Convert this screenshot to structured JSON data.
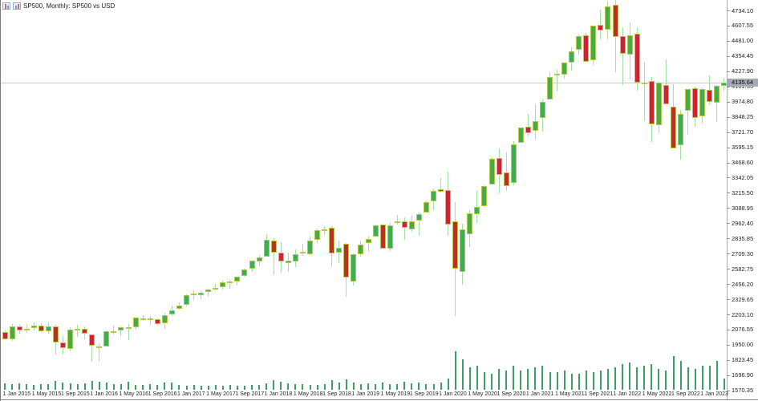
{
  "window": {
    "title": "SP500, Monthly: SP500 vs USD"
  },
  "icons": [
    {
      "name": "candlestick-chart-icon"
    },
    {
      "name": "bar-chart-icon"
    }
  ],
  "colors": {
    "background": "#ffffff",
    "bull_body": "#41ad4c",
    "bear_body": "#c9272f",
    "candle_outline": "#b4c84b",
    "wick": "#a5e0a5",
    "volume_bar": "#3b9f66",
    "current_price_line": "#c9c9c9",
    "price_tag_bg": "#a2a9b2",
    "axis_text": "#1f1f1f"
  },
  "y_axis": {
    "current_price": "4135.64",
    "label_under_tag": "4101.35",
    "top_label_value": 4734.1,
    "label_step": 126.55,
    "labels": [
      "4734.10",
      "4607.55",
      "4481.00",
      "4354.45",
      "4227.90",
      "4101.35",
      "3974.80",
      "3848.25",
      "3721.70",
      "3595.15",
      "3468.60",
      "3342.05",
      "3215.50",
      "3088.95",
      "2962.40",
      "2835.85",
      "2709.30",
      "2582.75",
      "2456.20",
      "2329.65",
      "2203.10",
      "2076.55",
      "1950.00",
      "1823.45",
      "1696.90",
      "1570.35"
    ]
  },
  "x_axis": {
    "labels": [
      "1 Jan 2015",
      "1 May 2015",
      "1 Sep 2015",
      "1 Jan 2016",
      "1 May 2016",
      "1 Sep 2016",
      "1 Jan 2017",
      "1 May 2017",
      "1 Sep 2017",
      "1 Jan 2018",
      "1 May 2018",
      "1 Sep 2018",
      "1 Jan 2019",
      "1 May 2019",
      "1 Sep 2019",
      "1 Jan 2020",
      "1 May 2020",
      "1 Sep 2020",
      "1 Jan 2021",
      "1 May 2021",
      "1 Sep 2021",
      "1 Jan 2022",
      "1 May 2022",
      "1 Sep 2022",
      "1 Jan 2023"
    ]
  },
  "chart_data": {
    "type": "candlestick",
    "title": "SP500, Monthly: SP500 vs USD",
    "symbol": "SP500",
    "timeframe": "Monthly",
    "quote_currency": "USD",
    "current_price": 4135.64,
    "ylim": [
      1570.35,
      4734.1
    ],
    "grid": false,
    "legend_position": "top-left",
    "columns": [
      "month",
      "open",
      "high",
      "low",
      "close",
      "volume_relative"
    ],
    "candles": [
      [
        "2014-12",
        2072,
        2094,
        1972,
        2059,
        7
      ],
      [
        "2015-01",
        2058,
        2072,
        1988,
        1995,
        8
      ],
      [
        "2015-02",
        1996,
        2120,
        1980,
        2105,
        7
      ],
      [
        "2015-03",
        2105,
        2117,
        2040,
        2068,
        8
      ],
      [
        "2015-04",
        2068,
        2126,
        2048,
        2086,
        7
      ],
      [
        "2015-05",
        2087,
        2135,
        2067,
        2107,
        6
      ],
      [
        "2015-06",
        2108,
        2130,
        2056,
        2063,
        7
      ],
      [
        "2015-07",
        2063,
        2133,
        2044,
        2104,
        7
      ],
      [
        "2015-08",
        2104,
        2113,
        1867,
        1972,
        11
      ],
      [
        "2015-09",
        1971,
        2021,
        1872,
        1920,
        9
      ],
      [
        "2015-10",
        1919,
        2095,
        1894,
        2079,
        8
      ],
      [
        "2015-11",
        2080,
        2116,
        2019,
        2086,
        7
      ],
      [
        "2015-12",
        2082,
        2104,
        1993,
        2044,
        8
      ],
      [
        "2016-01",
        2038,
        2038,
        1812,
        1940,
        11
      ],
      [
        "2016-02",
        1937,
        1963,
        1810,
        1932,
        10
      ],
      [
        "2016-03",
        1937,
        2072,
        1937,
        2060,
        9
      ],
      [
        "2016-04",
        2056,
        2111,
        2033,
        2065,
        7
      ],
      [
        "2016-05",
        2067,
        2103,
        2025,
        2097,
        7
      ],
      [
        "2016-06",
        2093,
        2120,
        1991,
        2099,
        10
      ],
      [
        "2016-07",
        2099,
        2177,
        2074,
        2174,
        6
      ],
      [
        "2016-08",
        2173,
        2194,
        2147,
        2171,
        6
      ],
      [
        "2016-09",
        2171,
        2187,
        2119,
        2168,
        7
      ],
      [
        "2016-10",
        2164,
        2169,
        2114,
        2126,
        6
      ],
      [
        "2016-11",
        2128,
        2214,
        2083,
        2199,
        9
      ],
      [
        "2016-12",
        2200,
        2278,
        2187,
        2239,
        9
      ],
      [
        "2017-01",
        2251,
        2301,
        2245,
        2279,
        6
      ],
      [
        "2017-02",
        2285,
        2371,
        2271,
        2364,
        5
      ],
      [
        "2017-03",
        2380,
        2401,
        2322,
        2363,
        6
      ],
      [
        "2017-04",
        2362,
        2398,
        2329,
        2384,
        5
      ],
      [
        "2017-05",
        2388,
        2418,
        2352,
        2412,
        5
      ],
      [
        "2017-06",
        2415,
        2454,
        2405,
        2423,
        6
      ],
      [
        "2017-07",
        2431,
        2484,
        2407,
        2470,
        5
      ],
      [
        "2017-08",
        2477,
        2490,
        2417,
        2472,
        6
      ],
      [
        "2017-09",
        2474,
        2519,
        2446,
        2519,
        5
      ],
      [
        "2017-10",
        2521,
        2582,
        2520,
        2575,
        5
      ],
      [
        "2017-11",
        2583,
        2657,
        2557,
        2648,
        6
      ],
      [
        "2017-12",
        2645,
        2695,
        2605,
        2674,
        6
      ],
      [
        "2018-01",
        2683,
        2873,
        2682,
        2824,
        8
      ],
      [
        "2018-02",
        2816,
        2835,
        2533,
        2714,
        12
      ],
      [
        "2018-03",
        2715,
        2802,
        2553,
        2641,
        10
      ],
      [
        "2018-04",
        2633,
        2717,
        2554,
        2648,
        8
      ],
      [
        "2018-05",
        2643,
        2742,
        2595,
        2705,
        7
      ],
      [
        "2018-06",
        2718,
        2791,
        2692,
        2726,
        7
      ],
      [
        "2018-07",
        2704,
        2848,
        2698,
        2816,
        6
      ],
      [
        "2018-08",
        2821,
        2916,
        2796,
        2902,
        6
      ],
      [
        "2018-09",
        2896,
        2941,
        2865,
        2914,
        7
      ],
      [
        "2018-10",
        2926,
        2939,
        2603,
        2712,
        12
      ],
      [
        "2018-11",
        2718,
        2815,
        2631,
        2760,
        9
      ],
      [
        "2018-12",
        2790,
        2800,
        2347,
        2507,
        13
      ],
      [
        "2019-01",
        2477,
        2708,
        2444,
        2704,
        9
      ],
      [
        "2019-02",
        2702,
        2813,
        2682,
        2784,
        7
      ],
      [
        "2019-03",
        2799,
        2860,
        2722,
        2834,
        8
      ],
      [
        "2019-04",
        2849,
        2949,
        2848,
        2946,
        7
      ],
      [
        "2019-05",
        2952,
        2954,
        2751,
        2752,
        9
      ],
      [
        "2019-06",
        2751,
        2964,
        2729,
        2942,
        7
      ],
      [
        "2019-07",
        2971,
        3028,
        2952,
        2980,
        7
      ],
      [
        "2019-08",
        2981,
        3013,
        2822,
        2926,
        10
      ],
      [
        "2019-09",
        2909,
        3022,
        2892,
        2977,
        8
      ],
      [
        "2019-10",
        2983,
        3050,
        2856,
        3038,
        9
      ],
      [
        "2019-11",
        3051,
        3154,
        3051,
        3141,
        7
      ],
      [
        "2019-12",
        3143,
        3248,
        3070,
        3231,
        7
      ],
      [
        "2020-01",
        3244,
        3338,
        3215,
        3226,
        9
      ],
      [
        "2020-02",
        3236,
        3394,
        2856,
        2954,
        14
      ],
      [
        "2020-03",
        2975,
        3137,
        2192,
        2585,
        48
      ],
      [
        "2020-04",
        2558,
        2955,
        2448,
        2912,
        38
      ],
      [
        "2020-05",
        2870,
        3068,
        2766,
        3044,
        28
      ],
      [
        "2020-06",
        3038,
        3233,
        2966,
        3100,
        30
      ],
      [
        "2020-07",
        3105,
        3280,
        3101,
        3271,
        22
      ],
      [
        "2020-08",
        3288,
        3514,
        3284,
        3500,
        20
      ],
      [
        "2020-09",
        3507,
        3588,
        3209,
        3363,
        26
      ],
      [
        "2020-10",
        3385,
        3550,
        3234,
        3270,
        24
      ],
      [
        "2020-11",
        3296,
        3645,
        3279,
        3622,
        30
      ],
      [
        "2020-12",
        3634,
        3760,
        3633,
        3756,
        24
      ],
      [
        "2021-01",
        3764,
        3870,
        3694,
        3714,
        26
      ],
      [
        "2021-02",
        3731,
        3950,
        3656,
        3811,
        28
      ],
      [
        "2021-03",
        3842,
        3994,
        3723,
        3973,
        30
      ],
      [
        "2021-04",
        3992,
        4218,
        3992,
        4181,
        22
      ],
      [
        "2021-05",
        4191,
        4238,
        4057,
        4204,
        22
      ],
      [
        "2021-06",
        4202,
        4302,
        4164,
        4298,
        24
      ],
      [
        "2021-07",
        4300,
        4429,
        4233,
        4395,
        20
      ],
      [
        "2021-08",
        4406,
        4537,
        4368,
        4523,
        20
      ],
      [
        "2021-09",
        4528,
        4546,
        4306,
        4308,
        24
      ],
      [
        "2021-10",
        4317,
        4608,
        4278,
        4605,
        22
      ],
      [
        "2021-11",
        4611,
        4744,
        4495,
        4567,
        24
      ],
      [
        "2021-12",
        4571,
        4808,
        4495,
        4766,
        26
      ],
      [
        "2022-01",
        4778,
        4818,
        4223,
        4516,
        28
      ],
      [
        "2022-02",
        4519,
        4595,
        4115,
        4374,
        32
      ],
      [
        "2022-03",
        4364,
        4637,
        4158,
        4530,
        34
      ],
      [
        "2022-04",
        4541,
        4593,
        4063,
        4132,
        28
      ],
      [
        "2022-05",
        4130,
        4307,
        3811,
        4132,
        30
      ],
      [
        "2022-06",
        4149,
        4177,
        3637,
        3785,
        32
      ],
      [
        "2022-07",
        3781,
        4140,
        3721,
        4130,
        26
      ],
      [
        "2022-08",
        4112,
        4325,
        3954,
        3955,
        24
      ],
      [
        "2022-09",
        3936,
        4119,
        3584,
        3586,
        42
      ],
      [
        "2022-10",
        3609,
        3905,
        3491,
        3872,
        36
      ],
      [
        "2022-11",
        3901,
        4080,
        3698,
        4080,
        28
      ],
      [
        "2022-12",
        4087,
        4101,
        3764,
        3840,
        26
      ],
      [
        "2023-01",
        3853,
        4094,
        3794,
        4077,
        30
      ],
      [
        "2023-02",
        4070,
        4195,
        3943,
        3970,
        30
      ],
      [
        "2023-03",
        3963,
        4110,
        3809,
        4109,
        36
      ],
      [
        "2023-04",
        4103,
        4170,
        4069,
        4136,
        14
      ]
    ]
  }
}
